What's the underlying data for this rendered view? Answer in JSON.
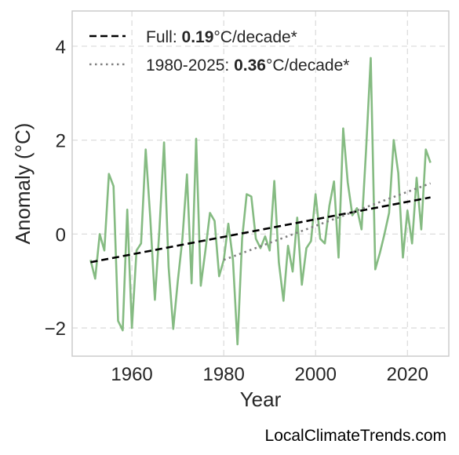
{
  "chart_data": {
    "type": "line",
    "title": "",
    "xlabel": "Year",
    "ylabel": "Anomaly (°C)",
    "xlim": [
      1947,
      2029
    ],
    "ylim": [
      -2.6,
      4.75
    ],
    "xticks": [
      1960,
      1980,
      2000,
      2020
    ],
    "yticks": [
      4,
      2,
      0,
      -2
    ],
    "ytick_labels": [
      "4",
      "2",
      "0",
      "−2"
    ],
    "grid": true,
    "legend_position": "top-left",
    "series": [
      {
        "color": "#85bb82",
        "x": [
          1951,
          1952,
          1953,
          1954,
          1955,
          1956,
          1957,
          1958,
          1959,
          1960,
          1961,
          1962,
          1963,
          1964,
          1965,
          1966,
          1967,
          1968,
          1969,
          1970,
          1971,
          1972,
          1973,
          1974,
          1975,
          1976,
          1977,
          1978,
          1979,
          1980,
          1981,
          1982,
          1983,
          1984,
          1985,
          1986,
          1987,
          1988,
          1989,
          1990,
          1991,
          1992,
          1993,
          1994,
          1995,
          1996,
          1997,
          1998,
          1999,
          2000,
          2001,
          2002,
          2003,
          2004,
          2005,
          2006,
          2007,
          2008,
          2009,
          2010,
          2011,
          2012,
          2013,
          2014,
          2015,
          2016,
          2017,
          2018,
          2019,
          2020,
          2021,
          2022,
          2023,
          2024,
          2025
        ],
        "values": [
          -0.55,
          -0.95,
          0.0,
          -0.35,
          1.28,
          1.02,
          -1.85,
          -2.05,
          0.52,
          -2.0,
          -0.35,
          -0.2,
          1.8,
          0.35,
          -1.4,
          0.1,
          1.95,
          -0.7,
          -2.02,
          -1.0,
          -0.1,
          1.27,
          -1.05,
          2.03,
          -1.1,
          -0.35,
          0.45,
          0.28,
          -0.9,
          -0.55,
          0.22,
          -0.55,
          -2.35,
          -0.1,
          0.85,
          0.8,
          -0.1,
          -0.3,
          -0.05,
          -0.35,
          1.13,
          -0.6,
          -1.42,
          -0.25,
          -0.8,
          0.35,
          -1.08,
          -0.3,
          -0.15,
          0.85,
          -0.1,
          -0.2,
          0.6,
          1.12,
          -0.5,
          2.25,
          1.1,
          0.4,
          0.55,
          0.1,
          1.8,
          3.75,
          -0.75,
          -0.4,
          0.0,
          0.45,
          2.0,
          1.3,
          -0.5,
          0.5,
          -0.2,
          1.2,
          0.1,
          1.8,
          1.52
        ]
      }
    ],
    "trend_lines": [
      {
        "label": "Full",
        "rate": "0.19",
        "unit": "°C/decade*",
        "style": "dashed",
        "color": "#000000",
        "x": [
          1951,
          2025
        ],
        "y": [
          -0.6,
          0.78
        ]
      },
      {
        "label": "1980-2025",
        "rate": "0.36",
        "unit": "°C/decade*",
        "style": "dotted",
        "color": "#808080",
        "x": [
          1980,
          2025
        ],
        "y": [
          -0.55,
          1.08
        ]
      }
    ]
  },
  "legend": {
    "full_prefix": "Full: ",
    "full_rate": "0.19",
    "full_suffix": "°C/decade*",
    "recent_prefix": "1980-2025: ",
    "recent_rate": "0.36",
    "recent_suffix": "°C/decade*"
  },
  "credit": "LocalClimateTrends.com"
}
